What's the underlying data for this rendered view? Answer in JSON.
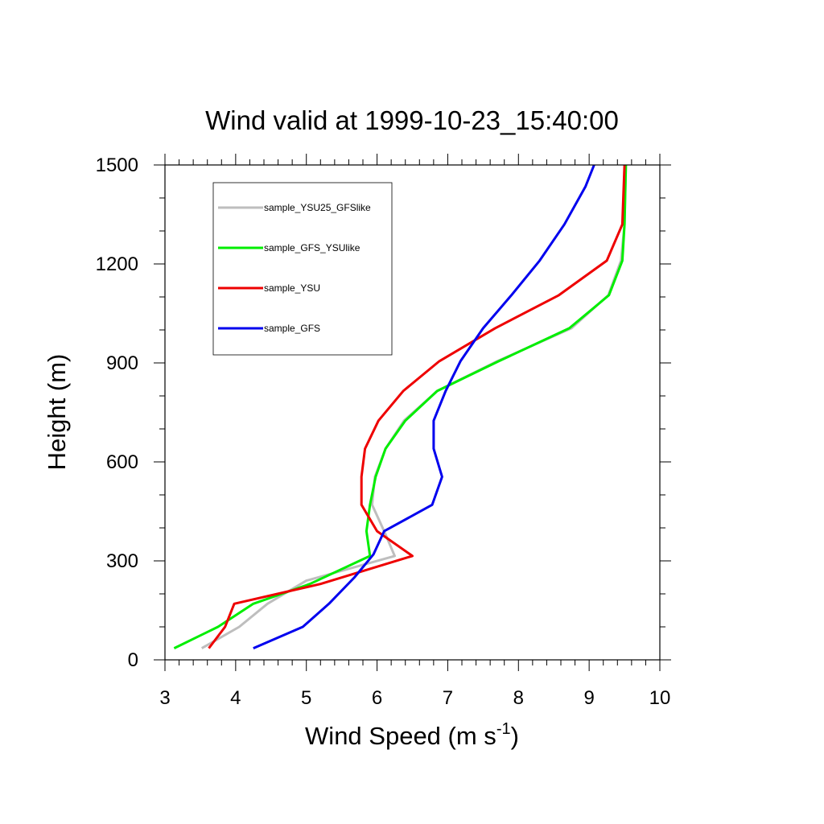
{
  "chart_data": {
    "type": "line",
    "title": "Wind valid at 1999-10-23_15:40:00",
    "xlabel": "Wind Speed (m s",
    "xlabel_sup": "-1",
    "xlabel_close": ")",
    "ylabel": "Height (m)",
    "xlim": [
      3,
      10
    ],
    "ylim": [
      0,
      1500
    ],
    "x_ticks": [
      3,
      4,
      5,
      6,
      7,
      8,
      9,
      10
    ],
    "y_ticks": [
      0,
      300,
      600,
      900,
      1200,
      1500
    ],
    "legend_position": "top-left",
    "series": [
      {
        "name": "sample_YSU25_GFSlike",
        "color": "#bebebe",
        "points": [
          [
            3.52,
            35
          ],
          [
            4.05,
            100
          ],
          [
            4.45,
            170
          ],
          [
            5.0,
            240
          ],
          [
            6.25,
            315
          ],
          [
            6.1,
            390
          ],
          [
            5.93,
            470
          ],
          [
            5.97,
            555
          ],
          [
            6.12,
            640
          ],
          [
            6.38,
            725
          ],
          [
            6.85,
            815
          ],
          [
            7.7,
            905
          ],
          [
            8.75,
            1005
          ],
          [
            9.27,
            1105
          ],
          [
            9.45,
            1210
          ],
          [
            9.5,
            1320
          ],
          [
            9.52,
            1500
          ]
        ]
      },
      {
        "name": "sample_GFS_YSUlike",
        "color": "#00ee00",
        "points": [
          [
            3.13,
            35
          ],
          [
            3.75,
            100
          ],
          [
            4.25,
            170
          ],
          [
            5.05,
            230
          ],
          [
            5.9,
            315
          ],
          [
            5.85,
            390
          ],
          [
            5.9,
            470
          ],
          [
            5.98,
            555
          ],
          [
            6.12,
            640
          ],
          [
            6.4,
            725
          ],
          [
            6.85,
            815
          ],
          [
            7.72,
            905
          ],
          [
            8.72,
            1005
          ],
          [
            9.28,
            1105
          ],
          [
            9.47,
            1210
          ],
          [
            9.5,
            1320
          ],
          [
            9.52,
            1500
          ]
        ]
      },
      {
        "name": "sample_YSU",
        "color": "#ee0000",
        "points": [
          [
            3.62,
            35
          ],
          [
            3.85,
            100
          ],
          [
            3.98,
            170
          ],
          [
            5.2,
            230
          ],
          [
            6.5,
            315
          ],
          [
            6.0,
            390
          ],
          [
            5.78,
            470
          ],
          [
            5.78,
            555
          ],
          [
            5.83,
            640
          ],
          [
            6.02,
            725
          ],
          [
            6.37,
            815
          ],
          [
            6.88,
            905
          ],
          [
            7.67,
            1005
          ],
          [
            8.57,
            1105
          ],
          [
            9.25,
            1210
          ],
          [
            9.47,
            1320
          ],
          [
            9.5,
            1500
          ]
        ]
      },
      {
        "name": "sample_GFS",
        "color": "#0000ee",
        "points": [
          [
            4.25,
            35
          ],
          [
            4.95,
            100
          ],
          [
            5.32,
            170
          ],
          [
            5.68,
            250
          ],
          [
            5.95,
            320
          ],
          [
            6.1,
            390
          ],
          [
            6.78,
            470
          ],
          [
            6.92,
            555
          ],
          [
            6.8,
            640
          ],
          [
            6.8,
            725
          ],
          [
            6.97,
            815
          ],
          [
            7.18,
            905
          ],
          [
            7.5,
            1005
          ],
          [
            7.9,
            1105
          ],
          [
            8.3,
            1210
          ],
          [
            8.65,
            1320
          ],
          [
            8.95,
            1435
          ],
          [
            9.07,
            1500
          ]
        ]
      }
    ]
  }
}
